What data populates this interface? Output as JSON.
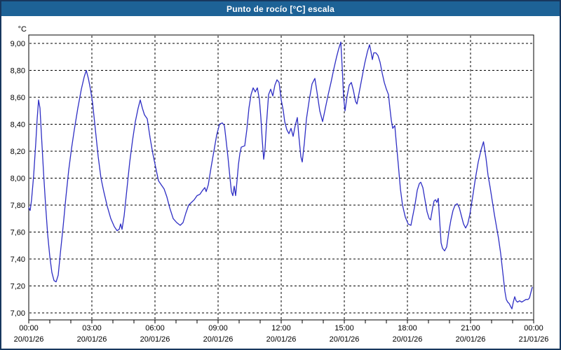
{
  "window": {
    "title": "Punto de rocío [°C] escala"
  },
  "colors": {
    "window_border": "#17375e",
    "titlebar_bg": "#1d6296",
    "titlebar_fg": "#ffffff",
    "plot_bg": "#ffffff",
    "grid": "#000000",
    "axis": "#000000",
    "label": "#000000",
    "line": "#2e2ec4"
  },
  "chart_data": {
    "type": "line",
    "title": "Punto de rocío [°C] escala",
    "unit_label": "°C",
    "xlabel": "",
    "ylabel": "",
    "ylim": [
      7.0,
      9.0
    ],
    "xlim_minutes": [
      0,
      1440
    ],
    "grid": "dashed",
    "legend": "none",
    "y_ticks": [
      {
        "value": 9.0,
        "label": "9,00"
      },
      {
        "value": 8.8,
        "label": "8,80"
      },
      {
        "value": 8.6,
        "label": "8,60"
      },
      {
        "value": 8.4,
        "label": "8,40"
      },
      {
        "value": 8.2,
        "label": "8,20"
      },
      {
        "value": 8.0,
        "label": "8,00"
      },
      {
        "value": 7.8,
        "label": "7,80"
      },
      {
        "value": 7.6,
        "label": "7,60"
      },
      {
        "value": 7.4,
        "label": "7,40"
      },
      {
        "value": 7.2,
        "label": "7,20"
      },
      {
        "value": 7.0,
        "label": "7,00"
      }
    ],
    "x_ticks": [
      {
        "minutes": 0,
        "time": "00:00",
        "date": "20/01/26"
      },
      {
        "minutes": 180,
        "time": "03:00",
        "date": "20/01/26"
      },
      {
        "minutes": 360,
        "time": "06:00",
        "date": "20/01/26"
      },
      {
        "minutes": 540,
        "time": "09:00",
        "date": "20/01/26"
      },
      {
        "minutes": 720,
        "time": "12:00",
        "date": "20/01/26"
      },
      {
        "minutes": 900,
        "time": "15:00",
        "date": "20/01/26"
      },
      {
        "minutes": 1080,
        "time": "18:00",
        "date": "20/01/26"
      },
      {
        "minutes": 1260,
        "time": "21:00",
        "date": "20/01/26"
      },
      {
        "minutes": 1440,
        "time": "00:00",
        "date": "21/01/26"
      }
    ],
    "minor_tick_interval_minutes": 60,
    "series": [
      {
        "name": "Punto de rocío",
        "color": "#2e2ec4",
        "points": [
          [
            0,
            7.78
          ],
          [
            4,
            7.76
          ],
          [
            8,
            7.84
          ],
          [
            14,
            8.02
          ],
          [
            20,
            8.26
          ],
          [
            24,
            8.44
          ],
          [
            28,
            8.58
          ],
          [
            32,
            8.52
          ],
          [
            36,
            8.33
          ],
          [
            42,
            8.05
          ],
          [
            48,
            7.8
          ],
          [
            54,
            7.58
          ],
          [
            60,
            7.42
          ],
          [
            66,
            7.3
          ],
          [
            72,
            7.24
          ],
          [
            78,
            7.23
          ],
          [
            84,
            7.28
          ],
          [
            90,
            7.44
          ],
          [
            98,
            7.64
          ],
          [
            106,
            7.86
          ],
          [
            114,
            8.06
          ],
          [
            122,
            8.22
          ],
          [
            130,
            8.36
          ],
          [
            140,
            8.52
          ],
          [
            150,
            8.66
          ],
          [
            158,
            8.75
          ],
          [
            164,
            8.8
          ],
          [
            170,
            8.74
          ],
          [
            176,
            8.66
          ],
          [
            182,
            8.56
          ],
          [
            190,
            8.36
          ],
          [
            198,
            8.16
          ],
          [
            206,
            8.0
          ],
          [
            214,
            7.9
          ],
          [
            224,
            7.79
          ],
          [
            234,
            7.7
          ],
          [
            244,
            7.64
          ],
          [
            252,
            7.61
          ],
          [
            258,
            7.62
          ],
          [
            262,
            7.66
          ],
          [
            266,
            7.62
          ],
          [
            272,
            7.72
          ],
          [
            280,
            7.92
          ],
          [
            288,
            8.12
          ],
          [
            296,
            8.28
          ],
          [
            304,
            8.42
          ],
          [
            312,
            8.52
          ],
          [
            318,
            8.58
          ],
          [
            324,
            8.52
          ],
          [
            330,
            8.47
          ],
          [
            338,
            8.44
          ],
          [
            346,
            8.3
          ],
          [
            354,
            8.18
          ],
          [
            362,
            8.08
          ],
          [
            370,
            7.98
          ],
          [
            378,
            7.95
          ],
          [
            386,
            7.92
          ],
          [
            394,
            7.86
          ],
          [
            402,
            7.78
          ],
          [
            412,
            7.7
          ],
          [
            422,
            7.67
          ],
          [
            432,
            7.65
          ],
          [
            440,
            7.67
          ],
          [
            448,
            7.74
          ],
          [
            456,
            7.8
          ],
          [
            464,
            7.82
          ],
          [
            472,
            7.84
          ],
          [
            480,
            7.87
          ],
          [
            488,
            7.88
          ],
          [
            496,
            7.91
          ],
          [
            502,
            7.93
          ],
          [
            506,
            7.9
          ],
          [
            512,
            7.95
          ],
          [
            520,
            8.08
          ],
          [
            528,
            8.2
          ],
          [
            536,
            8.32
          ],
          [
            544,
            8.4
          ],
          [
            552,
            8.41
          ],
          [
            558,
            8.39
          ],
          [
            562,
            8.3
          ],
          [
            568,
            8.16
          ],
          [
            574,
            8.0
          ],
          [
            578,
            7.9
          ],
          [
            582,
            7.87
          ],
          [
            586,
            7.94
          ],
          [
            590,
            7.87
          ],
          [
            594,
            7.98
          ],
          [
            598,
            8.1
          ],
          [
            602,
            8.18
          ],
          [
            606,
            8.23
          ],
          [
            616,
            8.24
          ],
          [
            622,
            8.36
          ],
          [
            628,
            8.52
          ],
          [
            634,
            8.62
          ],
          [
            640,
            8.67
          ],
          [
            646,
            8.64
          ],
          [
            652,
            8.67
          ],
          [
            658,
            8.58
          ],
          [
            662,
            8.45
          ],
          [
            666,
            8.28
          ],
          [
            670,
            8.14
          ],
          [
            674,
            8.22
          ],
          [
            678,
            8.4
          ],
          [
            684,
            8.62
          ],
          [
            690,
            8.66
          ],
          [
            696,
            8.61
          ],
          [
            702,
            8.69
          ],
          [
            708,
            8.73
          ],
          [
            714,
            8.71
          ],
          [
            720,
            8.58
          ],
          [
            726,
            8.5
          ],
          [
            730,
            8.42
          ],
          [
            736,
            8.36
          ],
          [
            742,
            8.33
          ],
          [
            748,
            8.37
          ],
          [
            754,
            8.31
          ],
          [
            760,
            8.39
          ],
          [
            766,
            8.45
          ],
          [
            770,
            8.32
          ],
          [
            776,
            8.16
          ],
          [
            780,
            8.12
          ],
          [
            786,
            8.26
          ],
          [
            792,
            8.44
          ],
          [
            800,
            8.58
          ],
          [
            808,
            8.7
          ],
          [
            816,
            8.74
          ],
          [
            822,
            8.64
          ],
          [
            830,
            8.5
          ],
          [
            838,
            8.42
          ],
          [
            846,
            8.52
          ],
          [
            854,
            8.62
          ],
          [
            862,
            8.71
          ],
          [
            870,
            8.81
          ],
          [
            878,
            8.9
          ],
          [
            884,
            8.96
          ],
          [
            890,
            9.01
          ],
          [
            894,
            8.82
          ],
          [
            898,
            8.6
          ],
          [
            902,
            8.5
          ],
          [
            908,
            8.61
          ],
          [
            914,
            8.69
          ],
          [
            920,
            8.71
          ],
          [
            926,
            8.65
          ],
          [
            932,
            8.57
          ],
          [
            936,
            8.55
          ],
          [
            942,
            8.63
          ],
          [
            950,
            8.74
          ],
          [
            958,
            8.85
          ],
          [
            966,
            8.94
          ],
          [
            972,
            8.99
          ],
          [
            976,
            8.94
          ],
          [
            980,
            8.88
          ],
          [
            984,
            8.93
          ],
          [
            990,
            8.93
          ],
          [
            996,
            8.91
          ],
          [
            1002,
            8.86
          ],
          [
            1008,
            8.78
          ],
          [
            1014,
            8.71
          ],
          [
            1020,
            8.66
          ],
          [
            1026,
            8.62
          ],
          [
            1030,
            8.52
          ],
          [
            1034,
            8.43
          ],
          [
            1038,
            8.37
          ],
          [
            1044,
            8.39
          ],
          [
            1048,
            8.27
          ],
          [
            1054,
            8.1
          ],
          [
            1060,
            7.92
          ],
          [
            1066,
            7.8
          ],
          [
            1074,
            7.71
          ],
          [
            1082,
            7.66
          ],
          [
            1090,
            7.65
          ],
          [
            1096,
            7.73
          ],
          [
            1102,
            7.81
          ],
          [
            1108,
            7.91
          ],
          [
            1114,
            7.96
          ],
          [
            1118,
            7.97
          ],
          [
            1124,
            7.93
          ],
          [
            1130,
            7.84
          ],
          [
            1136,
            7.75
          ],
          [
            1142,
            7.7
          ],
          [
            1146,
            7.69
          ],
          [
            1152,
            7.78
          ],
          [
            1156,
            7.83
          ],
          [
            1160,
            7.84
          ],
          [
            1164,
            7.82
          ],
          [
            1168,
            7.85
          ],
          [
            1172,
            7.68
          ],
          [
            1176,
            7.52
          ],
          [
            1180,
            7.48
          ],
          [
            1186,
            7.46
          ],
          [
            1192,
            7.49
          ],
          [
            1198,
            7.6
          ],
          [
            1204,
            7.69
          ],
          [
            1210,
            7.76
          ],
          [
            1216,
            7.8
          ],
          [
            1222,
            7.81
          ],
          [
            1228,
            7.78
          ],
          [
            1234,
            7.72
          ],
          [
            1240,
            7.66
          ],
          [
            1246,
            7.63
          ],
          [
            1252,
            7.66
          ],
          [
            1258,
            7.73
          ],
          [
            1266,
            7.86
          ],
          [
            1274,
            8.0
          ],
          [
            1282,
            8.12
          ],
          [
            1290,
            8.21
          ],
          [
            1297,
            8.27
          ],
          [
            1304,
            8.15
          ],
          [
            1310,
            8.02
          ],
          [
            1316,
            7.93
          ],
          [
            1322,
            7.83
          ],
          [
            1328,
            7.73
          ],
          [
            1334,
            7.64
          ],
          [
            1340,
            7.55
          ],
          [
            1346,
            7.44
          ],
          [
            1352,
            7.3
          ],
          [
            1358,
            7.16
          ],
          [
            1362,
            7.1
          ],
          [
            1366,
            7.08
          ],
          [
            1370,
            7.07
          ],
          [
            1374,
            7.05
          ],
          [
            1378,
            7.03
          ],
          [
            1382,
            7.08
          ],
          [
            1386,
            7.12
          ],
          [
            1390,
            7.09
          ],
          [
            1394,
            7.08
          ],
          [
            1400,
            7.09
          ],
          [
            1406,
            7.08
          ],
          [
            1412,
            7.09
          ],
          [
            1418,
            7.1
          ],
          [
            1424,
            7.1
          ],
          [
            1428,
            7.11
          ],
          [
            1432,
            7.15
          ],
          [
            1436,
            7.19
          ]
        ]
      }
    ]
  }
}
